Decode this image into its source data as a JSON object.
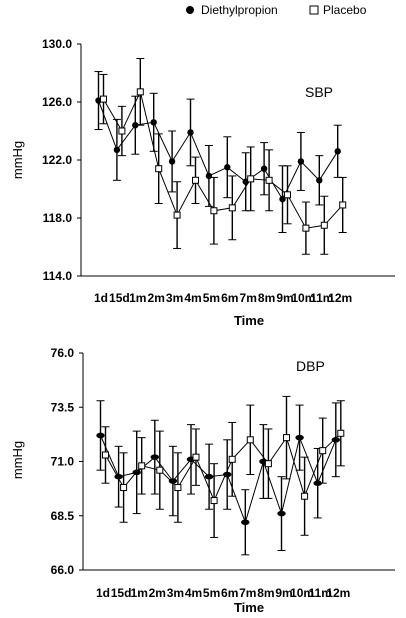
{
  "legend": {
    "entries": [
      {
        "label": "Diethylpropion",
        "marker": "filled-circle"
      },
      {
        "label": "Placebo",
        "marker": "open-square"
      }
    ],
    "placement": "top-right"
  },
  "colors": {
    "lines": "#000000",
    "placebo_fill": "#ffffff"
  },
  "chart_data": [
    {
      "type": "line",
      "title": "SBP",
      "xlabel": "Time",
      "ylabel": "mmHg",
      "ylim": [
        114.0,
        130.0
      ],
      "yticks": [
        "114.0",
        "118.0",
        "122.0",
        "126.0",
        "130.0"
      ],
      "ytick_values": [
        114,
        118,
        122,
        126,
        130
      ],
      "categories": [
        "1d",
        "15d",
        "1m",
        "2m",
        "3m",
        "4m",
        "5m",
        "6m",
        "7m",
        "8m",
        "9m",
        "10m",
        "11m",
        "12m"
      ],
      "grid": false,
      "series": [
        {
          "name": "Diethylpropion",
          "values": [
            126.1,
            122.7,
            124.4,
            124.6,
            121.9,
            123.9,
            120.9,
            121.5,
            120.5,
            121.4,
            119.3,
            121.9,
            120.6,
            122.6
          ],
          "err": [
            2.0,
            2.1,
            2.0,
            2.0,
            2.1,
            2.3,
            2.1,
            2.1,
            2.0,
            1.8,
            2.3,
            2.0,
            1.7,
            1.8
          ]
        },
        {
          "name": "Placebo",
          "values": [
            126.2,
            124.0,
            126.7,
            121.4,
            118.2,
            120.6,
            118.5,
            118.7,
            120.7,
            120.6,
            119.6,
            117.3,
            117.5,
            118.9
          ],
          "err": [
            1.7,
            1.7,
            2.3,
            2.4,
            2.3,
            1.6,
            2.3,
            2.2,
            2.2,
            2.1,
            2.0,
            1.8,
            2.0,
            1.9
          ]
        }
      ]
    },
    {
      "type": "line",
      "title": "DBP",
      "xlabel": "Time",
      "ylabel": "mmHg",
      "ylim": [
        66.0,
        76.0
      ],
      "yticks": [
        "66.0",
        "68.5",
        "71.0",
        "73.5",
        "76.0"
      ],
      "ytick_values": [
        66,
        68.5,
        71,
        73.5,
        76
      ],
      "categories": [
        "1d",
        "15d",
        "1m",
        "2m",
        "3m",
        "4m",
        "5m",
        "6m",
        "7m",
        "8m",
        "9m",
        "10m",
        "11m",
        "12m"
      ],
      "grid": false,
      "series": [
        {
          "name": "Diethylpropion",
          "values": [
            72.2,
            70.3,
            70.5,
            71.2,
            70.1,
            71.1,
            70.3,
            70.4,
            68.2,
            71.0,
            68.6,
            72.1,
            70.0,
            72.0
          ],
          "err": [
            1.6,
            1.4,
            1.9,
            1.7,
            1.6,
            1.6,
            1.5,
            1.6,
            1.5,
            1.7,
            1.7,
            1.5,
            1.6,
            1.7
          ]
        },
        {
          "name": "Placebo",
          "values": [
            71.3,
            69.8,
            70.8,
            70.6,
            69.8,
            71.2,
            69.2,
            71.1,
            72.0,
            70.9,
            72.1,
            69.4,
            71.5,
            72.3
          ],
          "err": [
            1.3,
            1.6,
            1.3,
            1.8,
            1.6,
            1.3,
            1.7,
            1.7,
            1.6,
            1.6,
            1.9,
            1.8,
            1.5,
            1.5
          ]
        }
      ]
    }
  ]
}
